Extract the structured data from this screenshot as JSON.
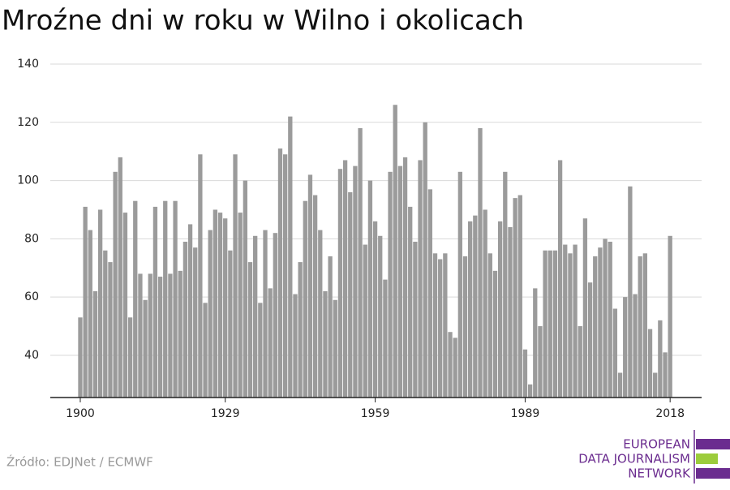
{
  "chart_data": {
    "type": "bar",
    "title": "Mroźne dni w roku w Wilno i okolicach",
    "x": [
      1900,
      1901,
      1902,
      1903,
      1904,
      1905,
      1906,
      1907,
      1908,
      1909,
      1910,
      1911,
      1912,
      1913,
      1914,
      1915,
      1916,
      1917,
      1918,
      1919,
      1920,
      1921,
      1922,
      1923,
      1924,
      1925,
      1926,
      1927,
      1928,
      1929,
      1930,
      1931,
      1932,
      1933,
      1934,
      1935,
      1936,
      1937,
      1938,
      1939,
      1940,
      1941,
      1942,
      1943,
      1944,
      1945,
      1946,
      1947,
      1948,
      1949,
      1950,
      1951,
      1952,
      1953,
      1954,
      1955,
      1956,
      1957,
      1958,
      1959,
      1960,
      1961,
      1962,
      1963,
      1964,
      1965,
      1966,
      1967,
      1968,
      1969,
      1970,
      1971,
      1972,
      1973,
      1974,
      1975,
      1976,
      1977,
      1978,
      1979,
      1980,
      1981,
      1982,
      1983,
      1984,
      1985,
      1986,
      1987,
      1988,
      1989,
      1990,
      1991,
      1992,
      1993,
      1994,
      1995,
      1996,
      1997,
      1998,
      1999,
      2000,
      2001,
      2002,
      2003,
      2004,
      2005,
      2006,
      2007,
      2008,
      2009,
      2010,
      2011,
      2012,
      2013,
      2014,
      2015,
      2016,
      2017,
      2018
    ],
    "values": [
      53,
      91,
      83,
      62,
      90,
      76,
      72,
      103,
      108,
      89,
      53,
      93,
      68,
      59,
      68,
      91,
      67,
      93,
      68,
      93,
      69,
      79,
      85,
      77,
      109,
      58,
      83,
      90,
      89,
      87,
      76,
      109,
      89,
      100,
      72,
      81,
      58,
      83,
      63,
      82,
      111,
      109,
      122,
      61,
      72,
      93,
      102,
      95,
      83,
      62,
      74,
      59,
      104,
      107,
      96,
      105,
      118,
      78,
      100,
      86,
      81,
      66,
      103,
      126,
      105,
      108,
      91,
      79,
      107,
      120,
      97,
      75,
      73,
      75,
      48,
      46,
      103,
      74,
      86,
      88,
      118,
      90,
      75,
      69,
      86,
      103,
      84,
      94,
      95,
      42,
      30,
      63,
      50,
      76,
      76,
      76,
      107,
      78,
      75,
      78,
      50,
      87,
      65,
      74,
      77,
      80,
      79,
      56,
      34,
      60,
      98,
      61,
      74,
      75,
      49,
      34,
      52,
      41,
      81
    ],
    "color": "#9b9b9b",
    "xlim": [
      1894,
      2024.3
    ],
    "xticks": [
      1900,
      1929,
      1959,
      1989,
      2018
    ],
    "ylim": [
      25.5,
      140
    ],
    "yticks": [
      40,
      60,
      80,
      100,
      120,
      140
    ],
    "grid": true
  },
  "source": "Źródło: EDJNet / ECMWF",
  "logo": {
    "lines": [
      "EUROPEAN",
      "DATA JOURNALISM",
      "NETWORK"
    ]
  }
}
